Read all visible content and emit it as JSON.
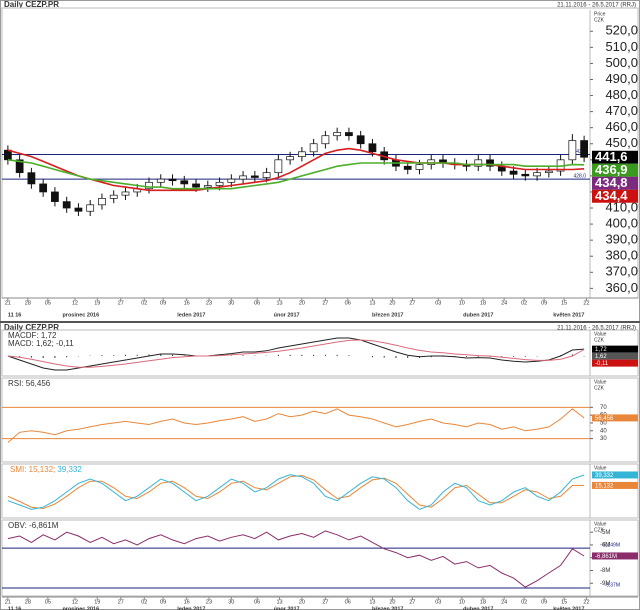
{
  "chart_data": [
    {
      "type": "candlestick",
      "title": "Daily CEZP.PR",
      "subtitle": "21.11.2016 - 26.5.2017 (RRJ)",
      "axis_label": [
        "Price",
        "CZK"
      ],
      "open": [
        446,
        440,
        432,
        425,
        420,
        414,
        410,
        408,
        412,
        416,
        418,
        420,
        422,
        426,
        428,
        427,
        425,
        423,
        424,
        426,
        428,
        430,
        429,
        432,
        440,
        442,
        445,
        450,
        455,
        457,
        455,
        450,
        445,
        440,
        436,
        434,
        437,
        440,
        438,
        437,
        436,
        440,
        436,
        433,
        431,
        430,
        432,
        433,
        440,
        452
      ],
      "high": [
        449,
        443,
        435,
        428,
        423,
        417,
        413,
        415,
        419,
        421,
        423,
        425,
        429,
        431,
        431,
        430,
        428,
        427,
        429,
        431,
        433,
        433,
        435,
        443,
        445,
        448,
        453,
        458,
        460,
        460,
        458,
        453,
        448,
        443,
        439,
        440,
        443,
        443,
        441,
        440,
        443,
        443,
        439,
        436,
        434,
        435,
        436,
        443,
        456,
        455
      ],
      "low": [
        437,
        429,
        422,
        417,
        411,
        407,
        405,
        405,
        409,
        413,
        415,
        417,
        419,
        423,
        424,
        422,
        420,
        420,
        421,
        423,
        425,
        426,
        426,
        429,
        437,
        439,
        442,
        447,
        452,
        452,
        447,
        442,
        437,
        433,
        431,
        431,
        434,
        435,
        434,
        433,
        433,
        433,
        430,
        428,
        427,
        427,
        429,
        430,
        437,
        438.6
      ],
      "close": [
        440,
        432,
        425,
        420,
        414,
        410,
        408,
        412,
        416,
        418,
        420,
        422,
        426,
        428,
        427,
        425,
        423,
        424,
        426,
        428,
        430,
        429,
        432,
        440,
        442,
        445,
        450,
        455,
        457,
        455,
        450,
        445,
        440,
        436,
        434,
        437,
        440,
        438,
        437,
        436,
        440,
        436,
        433,
        431,
        430,
        432,
        433,
        440,
        452,
        441.6
      ],
      "up_color": "#ffffff",
      "down_color": "#111111",
      "series": [
        {
          "color": "#d81e1e",
          "values": [
            446,
            444,
            442,
            439,
            436,
            433,
            430,
            428,
            426,
            424,
            423,
            422,
            421,
            421,
            421,
            421,
            421,
            422,
            423,
            424,
            425,
            426,
            427,
            429,
            432,
            436,
            440,
            444,
            446,
            447,
            446,
            444,
            442,
            440,
            439,
            438,
            438,
            438,
            437,
            437,
            437,
            437,
            436,
            435,
            434,
            434,
            434,
            434,
            434,
            434.4
          ]
        },
        {
          "color": "#4caf2a",
          "values": [
            440,
            439,
            438,
            436,
            434,
            432,
            430,
            428,
            427,
            426,
            425,
            424,
            423,
            423,
            422,
            422,
            422,
            422,
            422,
            422,
            423,
            424,
            425,
            426,
            428,
            430,
            432,
            434,
            436,
            437,
            438,
            438,
            438,
            438,
            438,
            438,
            438,
            438,
            438,
            437,
            437,
            437,
            437,
            437,
            436,
            436,
            436,
            436,
            437,
            436.9
          ]
        }
      ],
      "hlines": [
        {
          "value": 443.3,
          "label": "443,3",
          "color": "#1a237e"
        },
        {
          "value": 428.0,
          "label": "428,0",
          "color": "#1a237e"
        }
      ],
      "markers": [
        {
          "value": 441.6,
          "label": "441,6",
          "color": "#000000"
        },
        {
          "value": 436.9,
          "label": "436,9",
          "color": "#3a9a1e"
        },
        {
          "value": 434.8,
          "label": "434,8",
          "color": "#7b2a7f"
        },
        {
          "value": 434.4,
          "label": "434,4",
          "color": "#cc1111"
        }
      ],
      "ylim": [
        354,
        532
      ],
      "yticks": [
        {
          "value": 360,
          "label": "360,0"
        },
        {
          "value": 370,
          "label": "370,0"
        },
        {
          "value": 380,
          "label": "380,0"
        },
        {
          "value": 390,
          "label": "390,0"
        },
        {
          "value": 400,
          "label": "400,0"
        },
        {
          "value": 410,
          "label": "410,0"
        },
        {
          "value": 420,
          "label": "420,0"
        },
        {
          "value": 430,
          "label": "430,0"
        },
        {
          "value": 440,
          "label": "440,0"
        },
        {
          "value": 450,
          "label": "450,0"
        },
        {
          "value": 460,
          "label": "460,0"
        },
        {
          "value": 470,
          "label": "470,0"
        },
        {
          "value": 480,
          "label": "480,0"
        },
        {
          "value": 490,
          "label": "490,0"
        },
        {
          "value": 500,
          "label": "500,0"
        },
        {
          "value": 510,
          "label": "510,0"
        },
        {
          "value": 520,
          "label": "520,0"
        }
      ],
      "xlim": [
        -0.5,
        49.5
      ],
      "xticks": [
        {
          "value": 0,
          "label": "21"
        },
        {
          "value": 1.7,
          "label": "28"
        },
        {
          "value": 3.4,
          "label": "05"
        },
        {
          "value": 5.7,
          "label": "12"
        },
        {
          "value": 7.6,
          "label": "19"
        },
        {
          "value": 9.6,
          "label": "27"
        },
        {
          "value": 11.6,
          "label": "02"
        },
        {
          "value": 13.2,
          "label": "09"
        },
        {
          "value": 15.2,
          "label": "16"
        },
        {
          "value": 17.1,
          "label": "23"
        },
        {
          "value": 19.0,
          "label": "30"
        },
        {
          "value": 21.2,
          "label": "06"
        },
        {
          "value": 23.1,
          "label": "13"
        },
        {
          "value": 25.0,
          "label": "20"
        },
        {
          "value": 27.0,
          "label": "27"
        },
        {
          "value": 28.9,
          "label": "06"
        },
        {
          "value": 31.0,
          "label": "13"
        },
        {
          "value": 32.7,
          "label": "20"
        },
        {
          "value": 34.4,
          "label": "27"
        },
        {
          "value": 36.6,
          "label": "03"
        },
        {
          "value": 38.6,
          "label": "10"
        },
        {
          "value": 40.4,
          "label": "18"
        },
        {
          "value": 42.2,
          "label": "24"
        },
        {
          "value": 43.9,
          "label": "02"
        },
        {
          "value": 45.6,
          "label": "09"
        },
        {
          "value": 47.3,
          "label": "15"
        },
        {
          "value": 49.2,
          "label": "22"
        }
      ],
      "month_ticks": [
        {
          "value": 0,
          "label": "11 16"
        },
        {
          "value": 6.2,
          "label": "prosinec 2016"
        },
        {
          "value": 15.6,
          "label": "leden 2017"
        },
        {
          "value": 23.7,
          "label": "únor 2017"
        },
        {
          "value": 32.3,
          "label": "březen 2017"
        },
        {
          "value": 40,
          "label": "duben 2017"
        },
        {
          "value": 47.7,
          "label": "květen 2017"
        }
      ]
    },
    {
      "type": "macd",
      "axis_label": [
        "Value",
        "CZK"
      ],
      "series": [
        {
          "name": "MACDF: 1,72",
          "color": "#222222",
          "values": [
            0,
            -1,
            -2,
            -3,
            -3.5,
            -3.5,
            -3,
            -2.5,
            -2,
            -1.5,
            -1,
            -0.5,
            0,
            0.5,
            0.5,
            0.3,
            0,
            0,
            0.3,
            0.6,
            1,
            1,
            1.3,
            2,
            2.5,
            3,
            3.5,
            4,
            4.5,
            4.5,
            4,
            3,
            2,
            1,
            0.2,
            -0.2,
            0,
            0,
            -0.2,
            -0.5,
            -0.4,
            -0.5,
            -1,
            -1.3,
            -1.5,
            -1.3,
            -1,
            0,
            1.5,
            1.72
          ]
        },
        {
          "name": "MACD: 1,62; -0,11",
          "color": "#d86a7a",
          "values": [
            0,
            -0.3,
            -0.8,
            -1.4,
            -2,
            -2.5,
            -2.8,
            -2.8,
            -2.6,
            -2.3,
            -2,
            -1.6,
            -1.2,
            -0.8,
            -0.4,
            -0.2,
            0,
            0,
            0.1,
            0.3,
            0.5,
            0.7,
            0.9,
            1.2,
            1.6,
            2,
            2.5,
            3,
            3.5,
            3.9,
            4,
            3.8,
            3.3,
            2.7,
            2,
            1.4,
            1,
            0.8,
            0.5,
            0.3,
            0.1,
            0,
            -0.3,
            -0.6,
            -0.9,
            -1.1,
            -1.1,
            -0.8,
            0,
            1.62
          ]
        }
      ],
      "histogram": {
        "color": "#333333",
        "values": [
          0,
          -0.2,
          -0.4,
          -0.5,
          -0.5,
          -0.3,
          -0.1,
          0.1,
          0.2,
          0.2,
          0.3,
          0.3,
          0.4,
          0.4,
          0.3,
          0.1,
          0,
          0,
          0.1,
          0.1,
          0.2,
          0.1,
          0.1,
          0.3,
          0.3,
          0.3,
          0.3,
          0.3,
          0.3,
          0.2,
          0,
          -0.3,
          -0.4,
          -0.5,
          -0.5,
          -0.5,
          -0.3,
          -0.2,
          -0.2,
          -0.2,
          -0.2,
          -0.2,
          -0.2,
          -0.2,
          -0.2,
          -0.1,
          0,
          0.2,
          0.4,
          -0.11
        ]
      },
      "markers": [
        {
          "value": 1.72,
          "label": "1,72",
          "color": "#000000"
        },
        {
          "value": 1.62,
          "label": "1,62",
          "color": "#555555"
        },
        {
          "value": -0.11,
          "label": "-0,11",
          "color": "#cc1111"
        }
      ],
      "ylim": [
        -5,
        6
      ]
    },
    {
      "type": "line",
      "axis_label": [
        "Value",
        "CZK"
      ],
      "series": [
        {
          "name": "RSI: 56,456",
          "color": "#e8873a",
          "values": [
            25,
            38,
            40,
            38,
            35,
            40,
            42,
            45,
            48,
            50,
            52,
            50,
            48,
            52,
            55,
            50,
            48,
            50,
            53,
            55,
            58,
            52,
            55,
            62,
            58,
            60,
            65,
            62,
            68,
            60,
            58,
            55,
            50,
            45,
            48,
            52,
            55,
            50,
            48,
            45,
            50,
            48,
            42,
            45,
            40,
            42,
            45,
            55,
            68,
            56.456
          ]
        }
      ],
      "hlines": [
        {
          "value": 70,
          "color": "#e8873a"
        },
        {
          "value": 30,
          "color": "#e8873a"
        }
      ],
      "markers": [
        {
          "value": 56.456,
          "label": "56,456",
          "color": "#e8873a"
        }
      ],
      "ylim": [
        0,
        105
      ],
      "yticks": [
        30,
        40,
        50,
        60,
        70
      ]
    },
    {
      "type": "line",
      "legend": "inline",
      "axis_label": [
        "Value",
        "CZK"
      ],
      "series": [
        {
          "name": "SMI: 15,132;",
          "color": "#e8873a",
          "values": [
            -10,
            -22,
            -35,
            -38,
            -28,
            -10,
            10,
            25,
            25,
            10,
            -10,
            -15,
            0,
            20,
            25,
            10,
            -10,
            -15,
            0,
            20,
            25,
            10,
            5,
            20,
            35,
            38,
            28,
            5,
            -15,
            -10,
            10,
            28,
            32,
            20,
            -5,
            -30,
            -35,
            -15,
            10,
            15,
            -5,
            -25,
            -25,
            -10,
            5,
            0,
            -15,
            -10,
            15,
            15.132
          ]
        },
        {
          "name": "39,332",
          "color": "#35b5d5",
          "values": [
            -20,
            -30,
            -40,
            -35,
            -20,
            0,
            20,
            30,
            20,
            0,
            -20,
            -10,
            10,
            30,
            20,
            0,
            -20,
            -10,
            10,
            30,
            20,
            0,
            10,
            30,
            40,
            35,
            20,
            -10,
            -20,
            0,
            20,
            35,
            30,
            10,
            -20,
            -40,
            -30,
            0,
            20,
            10,
            -20,
            -30,
            -20,
            0,
            10,
            -10,
            -20,
            0,
            30,
            39.332
          ]
        }
      ],
      "markers": [
        {
          "value": 39.332,
          "label": "39,332",
          "color": "#35b5d5"
        },
        {
          "value": 15.132,
          "label": "15,132",
          "color": "#e8873a"
        }
      ],
      "ylim": [
        -60,
        60
      ]
    },
    {
      "type": "line",
      "axis_label": [
        "Value",
        "CZK"
      ],
      "series": [
        {
          "name": "OBV: -6,861M",
          "color": "#8b2d6b",
          "values": [
            -5.5,
            -5.3,
            -5.8,
            -5.2,
            -5.6,
            -5.0,
            -5.3,
            -5.8,
            -5.4,
            -5.9,
            -5.6,
            -6.0,
            -5.5,
            -5.2,
            -5.6,
            -5.9,
            -5.5,
            -5.3,
            -5.7,
            -5.4,
            -5.2,
            -5.5,
            -5.0,
            -5.6,
            -5.3,
            -5.1,
            -5.4,
            -4.9,
            -5.2,
            -5.6,
            -5.3,
            -5.8,
            -6.3,
            -6.6,
            -7.0,
            -6.8,
            -7.2,
            -6.9,
            -7.5,
            -7.3,
            -7.8,
            -7.6,
            -8.2,
            -8.6,
            -9.3,
            -8.8,
            -8.2,
            -7.6,
            -6.3,
            -6.861
          ]
        }
      ],
      "hlines": [
        {
          "value": -6.249,
          "label": "-6,249M",
          "color": "#1a237e"
        },
        {
          "value": -9.37,
          "label": "-9,37M",
          "color": "#1a237e"
        }
      ],
      "markers": [
        {
          "value": -6.861,
          "label": "-6,861M",
          "color": "#8b2d6b"
        }
      ],
      "ylim": [
        -10,
        -4.2
      ],
      "yticks": [
        {
          "value": -9,
          "label": "-9M"
        },
        {
          "value": -8,
          "label": "-8M"
        },
        {
          "value": -7,
          "label": "-7M"
        },
        {
          "value": -6,
          "label": "-6M"
        },
        {
          "value": -5,
          "label": "-5M"
        }
      ]
    }
  ]
}
